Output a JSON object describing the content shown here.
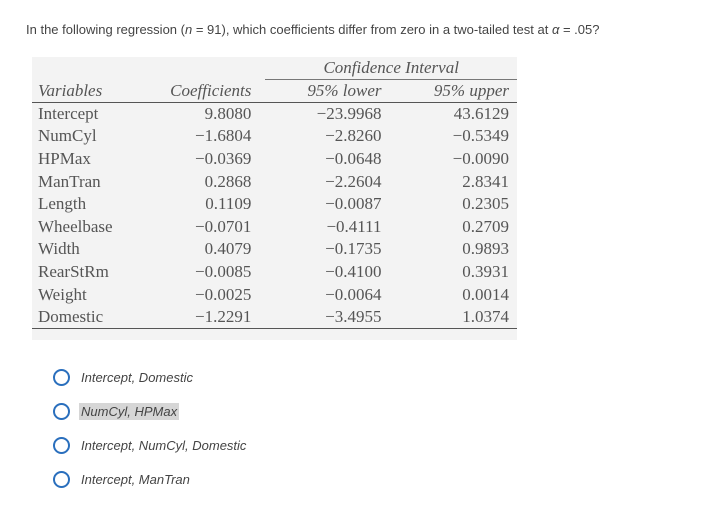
{
  "question": {
    "part1": "In the following regression (",
    "n_var": "n",
    "part2": " = 91), which coefficients differ from zero in a two-tailed test at ",
    "alpha_var": "α",
    "part3": " = .05?"
  },
  "table": {
    "ci_header": "Confidence Interval",
    "columns": [
      "Variables",
      "Coefficients",
      "95% lower",
      "95% upper"
    ],
    "rows": [
      [
        "Intercept",
        "9.8080",
        "−23.9968",
        "43.6129"
      ],
      [
        "NumCyl",
        "−1.6804",
        "−2.8260",
        "−0.5349"
      ],
      [
        "HPMax",
        "−0.0369",
        "−0.0648",
        "−0.0090"
      ],
      [
        "ManTran",
        "0.2868",
        "−2.2604",
        "2.8341"
      ],
      [
        "Length",
        "0.1109",
        "−0.0087",
        "0.2305"
      ],
      [
        "Wheelbase",
        "−0.0701",
        "−0.4111",
        "0.2709"
      ],
      [
        "Width",
        "0.4079",
        "−0.1735",
        "0.9893"
      ],
      [
        "RearStRm",
        "−0.0085",
        "−0.4100",
        "0.3931"
      ],
      [
        "Weight",
        "−0.0025",
        "−0.0064",
        "0.0014"
      ],
      [
        "Domestic",
        "−1.2291",
        "−3.4955",
        "1.0374"
      ]
    ]
  },
  "options": [
    {
      "label": "Intercept, Domestic",
      "highlighted": false
    },
    {
      "label": "NumCyl, HPMax",
      "highlighted": true
    },
    {
      "label": "Intercept, NumCyl, Domestic",
      "highlighted": false
    },
    {
      "label": "Intercept, ManTran",
      "highlighted": false
    }
  ],
  "colors": {
    "radio": "#2a6fbd",
    "table_bg": "#f3f3f3",
    "highlight": "#d6d6d6"
  }
}
